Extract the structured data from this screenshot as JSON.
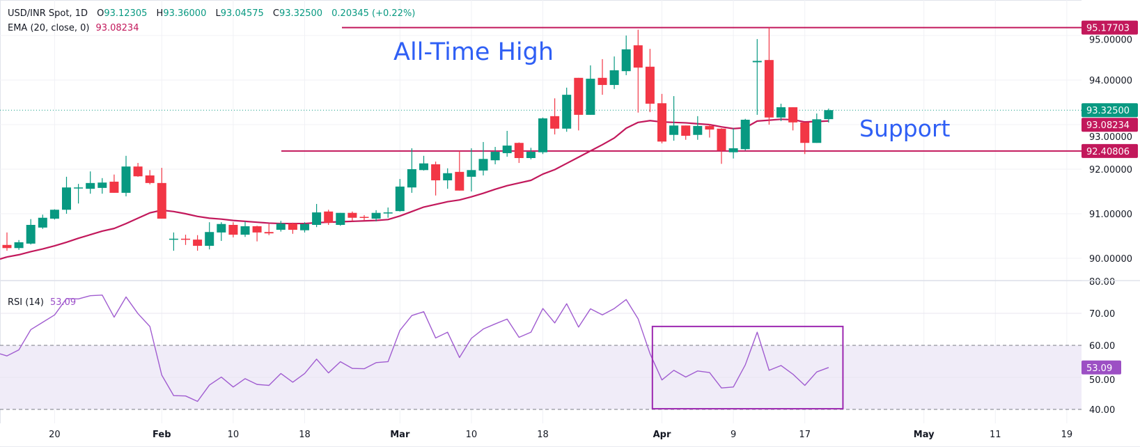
{
  "header": {
    "symbol": "USD/INR Spot, 1D",
    "o_label": "O",
    "o": "93.12305",
    "h_label": "H",
    "h": "93.36000",
    "l_label": "L",
    "l": "93.04575",
    "c_label": "C",
    "c": "93.32500",
    "change": "0.20345 (+0.22%)"
  },
  "ema_legend": {
    "label": "EMA (20, close, 0)",
    "value": "93.08234"
  },
  "rsi_legend": {
    "label": "RSI (14)",
    "value": "53.09"
  },
  "annotations": {
    "ath": {
      "text": "All-Time High",
      "level": 95.17703,
      "label": "95.17703"
    },
    "support": {
      "text": "Support",
      "level": 92.40806,
      "label": "92.40806"
    },
    "rsi_box": {
      "x_index": [
        54.2,
        70.2
      ],
      "rsi": [
        40.2,
        65.9
      ]
    }
  },
  "colors": {
    "up": "#089981",
    "down": "#f23645",
    "ema": "#c2185b",
    "rsi": "#a05cd0",
    "annotation": "#2f5ff5",
    "box": "#9c27b0",
    "level_line": "#c2185b"
  },
  "chart_data": {
    "type": "candlestick",
    "title": "USD/INR Spot, 1D",
    "ylim": [
      89.5,
      95.4
    ],
    "price_ticks": [
      {
        "value": 95,
        "label": "95.00000"
      },
      {
        "value": 94,
        "label": "94.00000"
      },
      {
        "value": 93,
        "label": "93.00000"
      },
      {
        "value": 92,
        "label": "92.00000"
      },
      {
        "value": 91,
        "label": "91.00000"
      },
      {
        "value": 90,
        "label": "90.00000"
      }
    ],
    "price_badges": [
      {
        "value": 95.17703,
        "label": "95.17703",
        "color": "#c2185b"
      },
      {
        "value": 93.325,
        "label": "93.32500",
        "color": "#089981"
      },
      {
        "value": 93.08234,
        "label": "93.08234",
        "color": "#c2185b"
      },
      {
        "value": 92.40806,
        "label": "92.40806",
        "color": "#c2185b"
      }
    ],
    "last_close": 93.325,
    "x_ticks": [
      {
        "index": 4,
        "label": "20",
        "bold": false
      },
      {
        "index": 13,
        "label": "Feb",
        "bold": true
      },
      {
        "index": 19,
        "label": "10",
        "bold": false
      },
      {
        "index": 25,
        "label": "18",
        "bold": false
      },
      {
        "index": 33,
        "label": "Mar",
        "bold": true
      },
      {
        "index": 39,
        "label": "10",
        "bold": false
      },
      {
        "index": 45,
        "label": "18",
        "bold": false
      },
      {
        "index": 55,
        "label": "Apr",
        "bold": true
      },
      {
        "index": 61,
        "label": "9",
        "bold": false
      },
      {
        "index": 67,
        "label": "17",
        "bold": false
      },
      {
        "index": 77,
        "label": "May",
        "bold": true
      },
      {
        "index": 83,
        "label": "11",
        "bold": false
      },
      {
        "index": 89,
        "label": "19",
        "bold": false
      }
    ],
    "candles_ohlc": [
      [
        90.3,
        90.58,
        90.17,
        90.23
      ],
      [
        90.23,
        90.41,
        90.19,
        90.36
      ],
      [
        90.33,
        90.88,
        90.31,
        90.75
      ],
      [
        90.69,
        90.98,
        90.66,
        90.91
      ],
      [
        90.89,
        91.1,
        90.87,
        91.09
      ],
      [
        91.09,
        91.83,
        91.0,
        91.59
      ],
      [
        91.58,
        91.67,
        91.23,
        91.59
      ],
      [
        91.56,
        91.95,
        91.45,
        91.69
      ],
      [
        91.58,
        91.8,
        91.45,
        91.7
      ],
      [
        91.72,
        91.88,
        91.47,
        91.47
      ],
      [
        91.47,
        92.3,
        91.39,
        92.06
      ],
      [
        92.06,
        92.14,
        91.83,
        91.84
      ],
      [
        91.86,
        91.98,
        91.66,
        91.69
      ],
      [
        91.69,
        92.03,
        90.89,
        90.89
      ],
      [
        90.43,
        90.58,
        90.17,
        90.44
      ],
      [
        90.44,
        90.53,
        90.3,
        90.43
      ],
      [
        90.42,
        90.52,
        90.17,
        90.28
      ],
      [
        90.28,
        90.81,
        90.2,
        90.59
      ],
      [
        90.58,
        90.81,
        90.39,
        90.77
      ],
      [
        90.75,
        90.81,
        90.47,
        90.53
      ],
      [
        90.53,
        90.83,
        90.48,
        90.72
      ],
      [
        90.72,
        90.73,
        90.38,
        90.58
      ],
      [
        90.59,
        90.77,
        90.52,
        90.56
      ],
      [
        90.64,
        90.84,
        90.6,
        90.78
      ],
      [
        90.78,
        90.8,
        90.55,
        90.64
      ],
      [
        90.63,
        90.81,
        90.58,
        90.77
      ],
      [
        90.75,
        91.22,
        90.7,
        91.03
      ],
      [
        91.05,
        91.09,
        90.75,
        90.8
      ],
      [
        90.75,
        91.02,
        90.73,
        91.02
      ],
      [
        91.02,
        91.05,
        90.83,
        90.91
      ],
      [
        90.93,
        90.97,
        90.85,
        90.92
      ],
      [
        90.89,
        91.08,
        90.83,
        91.02
      ],
      [
        91.01,
        91.14,
        90.91,
        91.03
      ],
      [
        91.06,
        91.78,
        91.05,
        91.61
      ],
      [
        91.59,
        92.47,
        91.47,
        92.0
      ],
      [
        91.98,
        92.3,
        91.97,
        92.13
      ],
      [
        92.11,
        92.17,
        91.41,
        91.75
      ],
      [
        91.75,
        92.02,
        91.56,
        91.91
      ],
      [
        91.94,
        92.41,
        91.52,
        91.52
      ],
      [
        91.83,
        92.47,
        91.5,
        91.98
      ],
      [
        91.97,
        92.61,
        91.86,
        92.23
      ],
      [
        92.2,
        92.5,
        92.11,
        92.39
      ],
      [
        92.36,
        92.86,
        92.28,
        92.53
      ],
      [
        92.59,
        92.6,
        92.14,
        92.25
      ],
      [
        92.25,
        92.48,
        92.22,
        92.39
      ],
      [
        92.38,
        93.16,
        92.34,
        93.14
      ],
      [
        93.19,
        93.59,
        92.78,
        92.91
      ],
      [
        92.91,
        93.83,
        92.84,
        93.67
      ],
      [
        94.05,
        94.05,
        92.87,
        93.22
      ],
      [
        93.22,
        94.33,
        93.22,
        94.03
      ],
      [
        94.05,
        94.47,
        93.67,
        93.89
      ],
      [
        93.89,
        94.53,
        93.8,
        94.22
      ],
      [
        94.2,
        95.0,
        94.11,
        94.69
      ],
      [
        94.78,
        95.13,
        93.27,
        94.28
      ],
      [
        94.3,
        94.7,
        93.28,
        93.47
      ],
      [
        93.48,
        93.69,
        92.58,
        92.62
      ],
      [
        92.77,
        93.64,
        92.64,
        92.98
      ],
      [
        92.98,
        92.98,
        92.66,
        92.75
      ],
      [
        92.77,
        93.19,
        92.66,
        92.97
      ],
      [
        92.97,
        93.01,
        92.71,
        92.89
      ],
      [
        92.91,
        92.92,
        92.12,
        92.42
      ],
      [
        92.38,
        92.92,
        92.24,
        92.47
      ],
      [
        92.45,
        93.13,
        92.42,
        93.11
      ],
      [
        94.4,
        94.92,
        93.22,
        94.43
      ],
      [
        94.45,
        95.18,
        93.0,
        93.16
      ],
      [
        93.16,
        93.47,
        93.08,
        93.39
      ],
      [
        93.39,
        93.39,
        92.87,
        93.05
      ],
      [
        93.05,
        93.05,
        92.34,
        92.59
      ],
      [
        92.59,
        93.25,
        92.59,
        93.12
      ],
      [
        93.12305,
        93.36,
        93.04575,
        93.325
      ]
    ],
    "ema20": [
      90.03,
      90.08,
      90.15,
      90.21,
      90.28,
      90.36,
      90.45,
      90.53,
      90.61,
      90.67,
      90.78,
      90.9,
      91.02,
      91.08,
      91.05,
      91.0,
      90.94,
      90.9,
      90.88,
      90.85,
      90.83,
      90.81,
      90.79,
      90.78,
      90.78,
      90.78,
      90.8,
      90.81,
      90.82,
      90.83,
      90.84,
      90.85,
      90.87,
      90.95,
      91.05,
      91.15,
      91.21,
      91.27,
      91.31,
      91.38,
      91.46,
      91.55,
      91.63,
      91.69,
      91.75,
      91.89,
      91.99,
      92.13,
      92.27,
      92.41,
      92.55,
      92.7,
      92.92,
      93.05,
      93.09,
      93.06,
      93.05,
      93.04,
      93.02,
      93.0,
      92.95,
      92.91,
      92.93,
      93.08,
      93.1,
      93.12,
      93.11,
      93.06,
      93.07,
      93.08234
    ],
    "rsi": {
      "ylim": [
        40,
        80
      ],
      "ticks": [
        {
          "value": 80,
          "label": "80.00"
        },
        {
          "value": 70,
          "label": "70.00"
        },
        {
          "value": 60,
          "label": "60.00"
        },
        {
          "value": 50,
          "label": "50.00"
        },
        {
          "value": 40,
          "label": "40.00"
        }
      ],
      "bands": [
        40,
        60
      ],
      "values": [
        56.7,
        58.6,
        64.9,
        67.2,
        69.5,
        74.6,
        74.5,
        75.5,
        75.7,
        68.8,
        75.1,
        69.9,
        65.9,
        50.7,
        44.3,
        44.2,
        42.5,
        47.6,
        50.1,
        47.0,
        49.6,
        47.8,
        47.5,
        51.2,
        48.5,
        51.2,
        55.7,
        51.4,
        54.9,
        52.8,
        52.7,
        54.6,
        54.9,
        64.7,
        69.3,
        70.5,
        62.3,
        64.1,
        56.2,
        62.2,
        65.1,
        66.7,
        68.2,
        62.5,
        64.1,
        71.5,
        67.0,
        73.0,
        65.7,
        71.4,
        69.5,
        71.5,
        74.3,
        68.3,
        57.4,
        49.2,
        52.2,
        50.1,
        52.0,
        51.5,
        46.7,
        47.0,
        53.9,
        64.1,
        52.2,
        53.7,
        51.0,
        47.5,
        51.7,
        53.09
      ],
      "badge": "53.09"
    }
  }
}
